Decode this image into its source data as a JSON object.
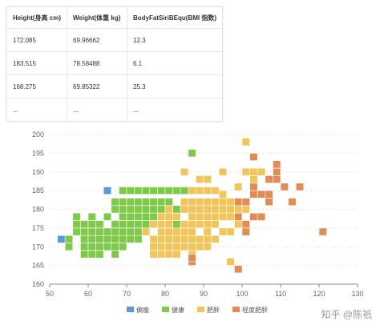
{
  "table": {
    "headers": [
      "Height(身高 cm)",
      "Weight(体重 kg)",
      "BodyFatSiriBEqu(BMI 指数)"
    ],
    "rows": [
      [
        "172.085",
        "69.96662",
        "12.3"
      ],
      [
        "183.515",
        "78.58488",
        "6.1"
      ],
      [
        "168.275",
        "69.85322",
        "25.3"
      ],
      [
        "...",
        "...",
        "..."
      ]
    ]
  },
  "chart_data": {
    "type": "heatmap",
    "title": "",
    "xlabel": "",
    "ylabel": "",
    "xlim": [
      50,
      130
    ],
    "ylim": [
      160,
      200
    ],
    "xticks": [
      "50",
      "60",
      "70",
      "80",
      "90",
      "100",
      "110",
      "120",
      "130"
    ],
    "yticks": [
      "160",
      "165",
      "170",
      "175",
      "180",
      "185",
      "190",
      "195",
      "200"
    ],
    "grid": "horizontal dashed",
    "legend_position": "bottom",
    "series": [
      {
        "name": "偏瘦",
        "color": "#5b9bd5",
        "cells": [
          [
            53,
            172
          ],
          [
            65,
            185
          ]
        ]
      },
      {
        "name": "健康",
        "color": "#7fc94a",
        "cells": [
          [
            55,
            172
          ],
          [
            55,
            170
          ],
          [
            57,
            174
          ],
          [
            57,
            176
          ],
          [
            57,
            178
          ],
          [
            59,
            168
          ],
          [
            59,
            170
          ],
          [
            59,
            172
          ],
          [
            59,
            174
          ],
          [
            59,
            176
          ],
          [
            61,
            168
          ],
          [
            61,
            170
          ],
          [
            61,
            172
          ],
          [
            61,
            174
          ],
          [
            61,
            176
          ],
          [
            61,
            178
          ],
          [
            63,
            168
          ],
          [
            63,
            170
          ],
          [
            63,
            172
          ],
          [
            63,
            174
          ],
          [
            63,
            176
          ],
          [
            65,
            170
          ],
          [
            65,
            172
          ],
          [
            65,
            174
          ],
          [
            65,
            178
          ],
          [
            67,
            168
          ],
          [
            67,
            170
          ],
          [
            67,
            172
          ],
          [
            67,
            174
          ],
          [
            67,
            176
          ],
          [
            67,
            180
          ],
          [
            67,
            182
          ],
          [
            69,
            170
          ],
          [
            69,
            172
          ],
          [
            69,
            174
          ],
          [
            69,
            176
          ],
          [
            69,
            178
          ],
          [
            69,
            180
          ],
          [
            69,
            182
          ],
          [
            69,
            185
          ],
          [
            71,
            172
          ],
          [
            71,
            174
          ],
          [
            71,
            176
          ],
          [
            71,
            178
          ],
          [
            71,
            180
          ],
          [
            71,
            182
          ],
          [
            71,
            185
          ],
          [
            73,
            172
          ],
          [
            73,
            174
          ],
          [
            73,
            176
          ],
          [
            73,
            178
          ],
          [
            73,
            180
          ],
          [
            73,
            182
          ],
          [
            73,
            185
          ],
          [
            75,
            176
          ],
          [
            75,
            178
          ],
          [
            75,
            180
          ],
          [
            75,
            182
          ],
          [
            75,
            185
          ],
          [
            77,
            178
          ],
          [
            77,
            180
          ],
          [
            77,
            182
          ],
          [
            77,
            185
          ],
          [
            79,
            180
          ],
          [
            79,
            182
          ],
          [
            79,
            185
          ],
          [
            81,
            182
          ],
          [
            81,
            185
          ],
          [
            83,
            176
          ],
          [
            83,
            180
          ],
          [
            83,
            185
          ],
          [
            85,
            185
          ],
          [
            87,
            195
          ]
        ]
      },
      {
        "name": "肥胖",
        "color": "#f2c55a",
        "cells": [
          [
            75,
            174
          ],
          [
            77,
            168
          ],
          [
            77,
            170
          ],
          [
            77,
            172
          ],
          [
            77,
            176
          ],
          [
            79,
            168
          ],
          [
            79,
            170
          ],
          [
            79,
            172
          ],
          [
            79,
            174
          ],
          [
            79,
            176
          ],
          [
            79,
            178
          ],
          [
            81,
            168
          ],
          [
            81,
            170
          ],
          [
            81,
            172
          ],
          [
            81,
            174
          ],
          [
            81,
            176
          ],
          [
            81,
            178
          ],
          [
            81,
            180
          ],
          [
            83,
            168
          ],
          [
            83,
            170
          ],
          [
            83,
            172
          ],
          [
            83,
            174
          ],
          [
            83,
            178
          ],
          [
            85,
            170
          ],
          [
            85,
            172
          ],
          [
            85,
            174
          ],
          [
            85,
            176
          ],
          [
            85,
            180
          ],
          [
            85,
            182
          ],
          [
            85,
            190
          ],
          [
            87,
            168
          ],
          [
            87,
            170
          ],
          [
            87,
            172
          ],
          [
            87,
            174
          ],
          [
            87,
            176
          ],
          [
            87,
            178
          ],
          [
            87,
            180
          ],
          [
            87,
            182
          ],
          [
            87,
            185
          ],
          [
            89,
            170
          ],
          [
            89,
            172
          ],
          [
            89,
            176
          ],
          [
            89,
            178
          ],
          [
            89,
            180
          ],
          [
            89,
            182
          ],
          [
            89,
            185
          ],
          [
            89,
            188
          ],
          [
            91,
            170
          ],
          [
            91,
            172
          ],
          [
            91,
            174
          ],
          [
            91,
            176
          ],
          [
            91,
            178
          ],
          [
            91,
            180
          ],
          [
            91,
            182
          ],
          [
            91,
            185
          ],
          [
            91,
            188
          ],
          [
            93,
            172
          ],
          [
            93,
            176
          ],
          [
            93,
            178
          ],
          [
            93,
            180
          ],
          [
            93,
            182
          ],
          [
            93,
            185
          ],
          [
            95,
            174
          ],
          [
            95,
            178
          ],
          [
            95,
            180
          ],
          [
            95,
            182
          ],
          [
            95,
            184
          ],
          [
            95,
            190
          ],
          [
            97,
            166
          ],
          [
            97,
            174
          ],
          [
            97,
            178
          ],
          [
            97,
            180
          ],
          [
            97,
            182
          ],
          [
            99,
            176
          ],
          [
            99,
            180
          ],
          [
            99,
            186
          ],
          [
            101,
            176
          ],
          [
            101,
            180
          ],
          [
            101,
            190
          ],
          [
            101,
            198
          ],
          [
            103,
            188
          ],
          [
            103,
            190
          ],
          [
            105,
            190
          ]
        ]
      },
      {
        "name": "轻度肥胖",
        "color": "#e08c55",
        "cells": [
          [
            87,
            166
          ],
          [
            87,
            167
          ],
          [
            99,
            164
          ],
          [
            99,
            178
          ],
          [
            99,
            182
          ],
          [
            101,
            176
          ],
          [
            101,
            182
          ],
          [
            103,
            178
          ],
          [
            103,
            184
          ],
          [
            103,
            186
          ],
          [
            103,
            194
          ],
          [
            105,
            178
          ],
          [
            105,
            184
          ],
          [
            107,
            182
          ],
          [
            107,
            188
          ],
          [
            109,
            188
          ],
          [
            109,
            190
          ],
          [
            109,
            192
          ],
          [
            111,
            186
          ],
          [
            113,
            182
          ],
          [
            115,
            186
          ],
          [
            121,
            174
          ],
          [
            101,
            174
          ],
          [
            107,
            184
          ]
        ]
      }
    ]
  },
  "watermark": "知乎 @陈祇"
}
